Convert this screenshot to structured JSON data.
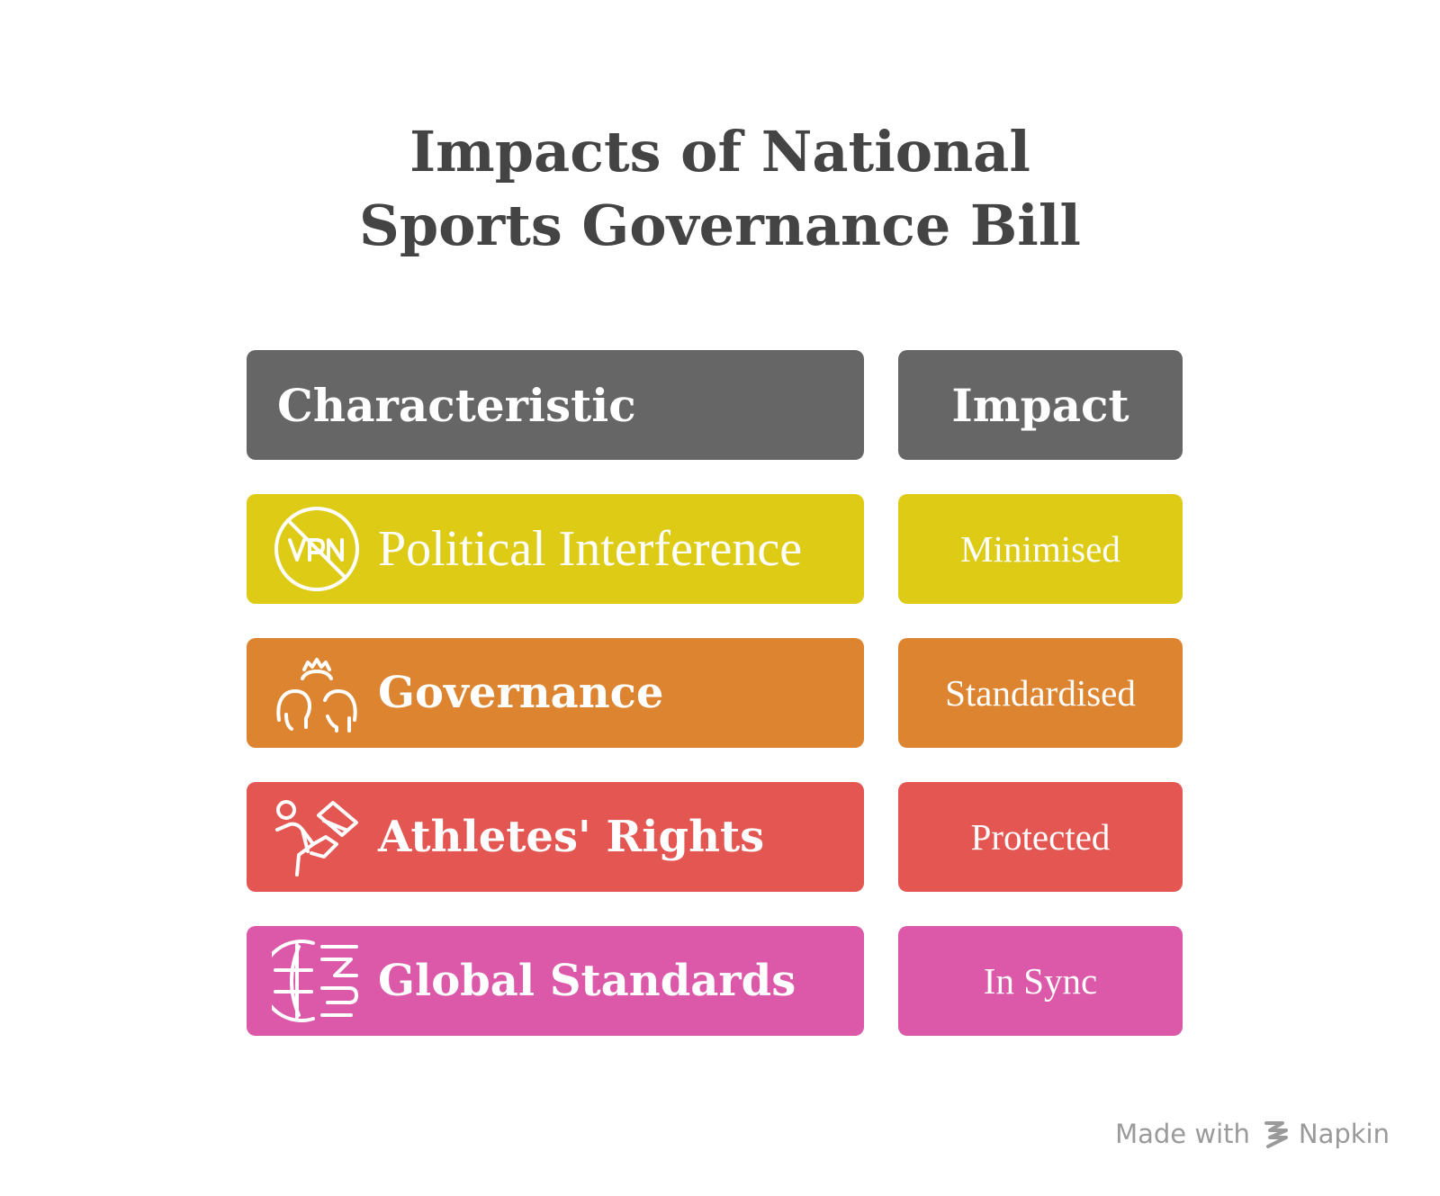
{
  "title": {
    "line1": "Impacts of National",
    "line2": "Sports Governance Bill"
  },
  "headers": {
    "characteristic": "Characteristic",
    "impact": "Impact"
  },
  "colors": {
    "header": "#666666",
    "row_colors": [
      "#ddcb16",
      "#dd8430",
      "#e45652",
      "#dc58a8"
    ]
  },
  "rows": [
    {
      "icon": "no-vpn-icon",
      "label": "Political Interference",
      "impact": "Minimised"
    },
    {
      "icon": "people-gear-icon",
      "label": "Governance",
      "impact": "Standardised"
    },
    {
      "icon": "athlete-running-icon",
      "label": "Athletes' Rights",
      "impact": "Protected"
    },
    {
      "icon": "globe-standards-icon",
      "label": "Global Standards",
      "impact": "In Sync"
    }
  ],
  "footer": {
    "made_with": "Made with",
    "brand": "Napkin"
  }
}
